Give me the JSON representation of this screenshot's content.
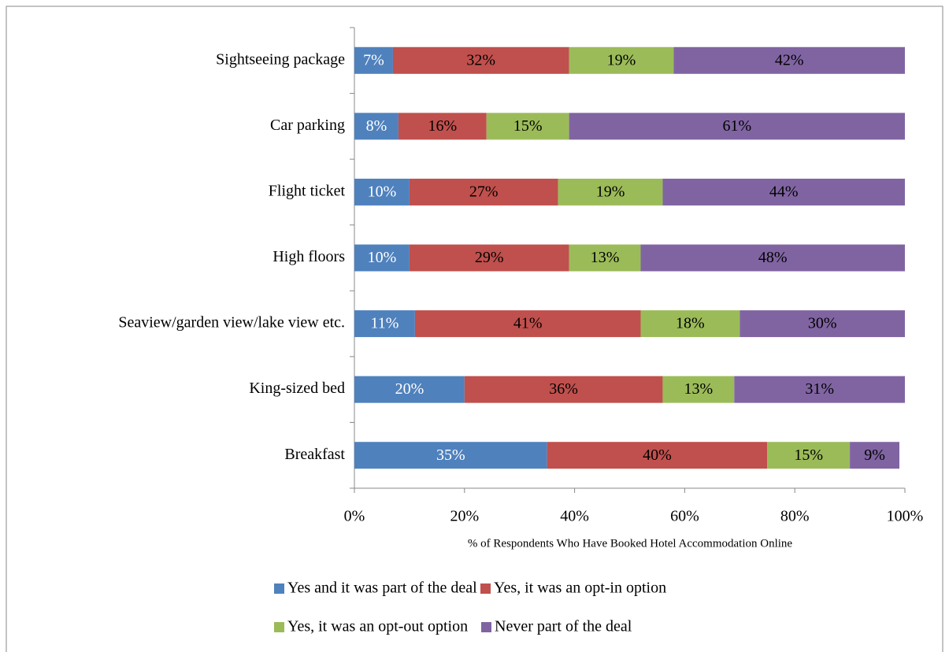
{
  "chart_data": {
    "type": "stacked_barh",
    "x_label": "% of Respondents Who Have Booked Hotel Accommodation Online",
    "categories": [
      "Sightseeing package",
      "Car parking",
      "Flight ticket",
      "High floors",
      "Seaview/garden view/lake view etc.",
      "King-sized bed",
      "Breakfast"
    ],
    "series": [
      {
        "name": "Yes and it was part of the deal",
        "color": "#4f81bd",
        "values": [
          7,
          8,
          10,
          10,
          11,
          20,
          35
        ],
        "value_labels": [
          "7%",
          "8%",
          "10%",
          "10%",
          "11%",
          "20%",
          "35%"
        ]
      },
      {
        "name": "Yes, it was an opt-in option",
        "color": "#c0504d",
        "values": [
          32,
          16,
          27,
          29,
          41,
          36,
          40
        ],
        "value_labels": [
          "32%",
          "16%",
          "27%",
          "29%",
          "41%",
          "36%",
          "40%"
        ]
      },
      {
        "name": "Yes, it was an opt-out option",
        "color": "#9bbb59",
        "values": [
          19,
          15,
          19,
          13,
          18,
          13,
          15
        ],
        "value_labels": [
          "19%",
          "15%",
          "19%",
          "13%",
          "18%",
          "13%",
          "15%"
        ]
      },
      {
        "name": "Never part of the deal",
        "color": "#8064a2",
        "values": [
          42,
          61,
          44,
          48,
          30,
          31,
          9
        ],
        "value_labels": [
          "42%",
          "61%",
          "44%",
          "48%",
          "30%",
          "31%",
          "9%"
        ]
      }
    ],
    "xlim": [
      0,
      100
    ],
    "xticks": [
      {
        "value": 0,
        "label": "0%"
      },
      {
        "value": 20,
        "label": "20%"
      },
      {
        "value": 40,
        "label": "40%"
      },
      {
        "value": 60,
        "label": "60%"
      },
      {
        "value": 80,
        "label": "80%"
      },
      {
        "value": 100,
        "label": "100%"
      }
    ],
    "legend": "bottom"
  }
}
